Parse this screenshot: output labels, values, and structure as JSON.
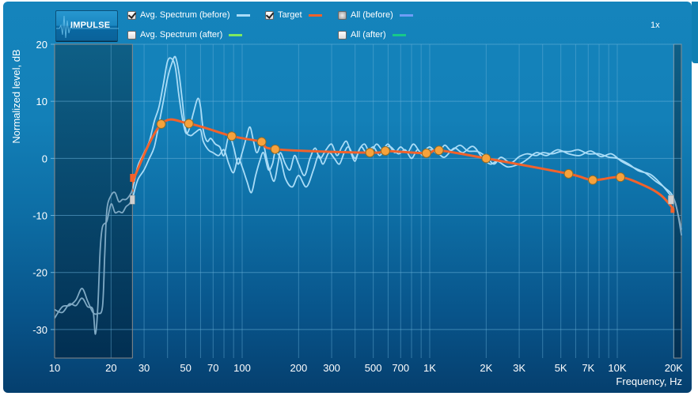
{
  "toolbar": {
    "impulse_button_label": "IMPULSE",
    "zoom_level": "1x"
  },
  "legend": [
    {
      "label": "Avg. Spectrum (before)",
      "checked": true,
      "color": "#a9dcf7"
    },
    {
      "label": "Avg. Spectrum (after)",
      "checked": false,
      "color": "#7ee95f"
    },
    {
      "label": "Target",
      "checked": true,
      "color": "#f2622b"
    },
    {
      "label": "All (before)",
      "checked": "partial",
      "color": "#6e9df6"
    },
    {
      "label": "All (after)",
      "checked": false,
      "color": "#17c98a"
    }
  ],
  "colors": {
    "target": "#f2622b",
    "target_point_fill": "#f7a23b",
    "spectrum": "#a9dcf7",
    "out_of_range_curve": "#7fa9c4",
    "grid": "#5aa6d2",
    "shaded_region": "#0b5b82"
  },
  "chart_data": {
    "type": "line",
    "title": "",
    "xlabel": "Frequency, Hz",
    "ylabel": "Normalized level, dB",
    "xscale": "log",
    "xlim": [
      10,
      22000
    ],
    "ylim": [
      -35,
      20
    ],
    "grid": true,
    "x_ticks": [
      10,
      20,
      30,
      50,
      70,
      100,
      200,
      300,
      500,
      700,
      1000,
      2000,
      3000,
      5000,
      7000,
      10000,
      20000
    ],
    "x_tick_labels": [
      "10",
      "20",
      "30",
      "50",
      "70",
      "100",
      "200",
      "300",
      "500",
      "700",
      "1K",
      "2K",
      "3K",
      "5K",
      "7K",
      "10K",
      "20K"
    ],
    "x_minor_grid": [
      40,
      60,
      80,
      90,
      400,
      600,
      800,
      900,
      4000,
      6000,
      8000,
      9000
    ],
    "y_ticks": [
      20,
      10,
      0,
      -10,
      -20,
      -30
    ],
    "y_tick_labels": [
      "20",
      "10",
      "0",
      "-10",
      "-20",
      "-30"
    ],
    "range_limits": {
      "low_hz": 26,
      "high_hz": 20000
    },
    "series": [
      {
        "name": "Target",
        "kind": "target",
        "points": [
          [
            26.5,
            -3.5
          ],
          [
            37,
            6
          ],
          [
            52,
            6.1
          ],
          [
            88,
            3.9
          ],
          [
            127,
            2.9
          ],
          [
            150,
            1.6
          ],
          [
            480,
            1.0
          ],
          [
            580,
            1.3
          ],
          [
            960,
            0.9
          ],
          [
            1120,
            1.4
          ],
          [
            2000,
            0
          ],
          [
            5500,
            -2.7
          ],
          [
            7400,
            -3.8
          ],
          [
            10400,
            -3.3
          ]
        ],
        "curve_tail": [
          [
            14000,
            -4.8
          ],
          [
            17000,
            -6.4
          ],
          [
            19500,
            -8.5
          ],
          [
            22000,
            -10.8
          ]
        ]
      },
      {
        "name": "Avg. Spectrum (before) L",
        "kind": "spectrum",
        "points": [
          [
            10,
            -28
          ],
          [
            11,
            -26
          ],
          [
            12,
            -25.8
          ],
          [
            13,
            -24.8
          ],
          [
            14,
            -22.8
          ],
          [
            15,
            -25
          ],
          [
            16,
            -27
          ],
          [
            17,
            -27.2
          ],
          [
            18,
            -26
          ],
          [
            18.5,
            -17
          ],
          [
            19,
            -9
          ],
          [
            20,
            -6.5
          ],
          [
            21,
            -6
          ],
          [
            22,
            -7.6
          ],
          [
            23,
            -7.2
          ],
          [
            24,
            -7.2
          ],
          [
            25,
            -6.6
          ],
          [
            26,
            -5.5
          ],
          [
            27,
            -3
          ],
          [
            28,
            -1
          ],
          [
            30,
            1
          ],
          [
            32,
            3
          ],
          [
            34,
            6.5
          ],
          [
            36,
            9
          ],
          [
            38,
            13
          ],
          [
            40,
            17
          ],
          [
            42,
            17.5
          ],
          [
            44,
            16
          ],
          [
            46,
            11
          ],
          [
            48,
            7
          ],
          [
            50,
            4.5
          ],
          [
            52,
            5
          ],
          [
            55,
            8
          ],
          [
            58,
            10.5
          ],
          [
            60,
            9
          ],
          [
            62,
            5
          ],
          [
            65,
            3
          ],
          [
            68,
            3.5
          ],
          [
            72,
            2.5
          ],
          [
            76,
            2
          ],
          [
            80,
            0.5
          ],
          [
            85,
            4
          ],
          [
            90,
            2
          ],
          [
            95,
            -1
          ],
          [
            100,
            1
          ],
          [
            105,
            3.5
          ],
          [
            110,
            5.5
          ],
          [
            115,
            3
          ],
          [
            120,
            1
          ],
          [
            128,
            3
          ],
          [
            135,
            0
          ],
          [
            140,
            -2
          ],
          [
            148,
            -4
          ],
          [
            155,
            -1
          ],
          [
            160,
            1
          ],
          [
            170,
            -1
          ],
          [
            180,
            -2
          ],
          [
            190,
            0.5
          ],
          [
            200,
            -1
          ],
          [
            215,
            -3
          ],
          [
            230,
            0
          ],
          [
            245,
            1.8
          ],
          [
            260,
            0
          ],
          [
            280,
            1.5
          ],
          [
            300,
            2.5
          ],
          [
            320,
            0.5
          ],
          [
            340,
            2
          ],
          [
            360,
            3
          ],
          [
            380,
            1
          ],
          [
            400,
            -0.5
          ],
          [
            420,
            1.5
          ],
          [
            450,
            2.5
          ],
          [
            480,
            1
          ],
          [
            520,
            2.5
          ],
          [
            560,
            1.5
          ],
          [
            600,
            2.5
          ],
          [
            650,
            1
          ],
          [
            700,
            2
          ],
          [
            760,
            1
          ],
          [
            820,
            2.5
          ],
          [
            900,
            1
          ],
          [
            1000,
            2
          ],
          [
            1100,
            0.8
          ],
          [
            1200,
            2.3
          ],
          [
            1300,
            1.4
          ],
          [
            1450,
            2.3
          ],
          [
            1600,
            1.3
          ],
          [
            1800,
            1.2
          ],
          [
            2000,
            0.3
          ],
          [
            2200,
            -1
          ],
          [
            2400,
            0.2
          ],
          [
            2700,
            -0.8
          ],
          [
            3000,
            0.3
          ],
          [
            3300,
            0.8
          ],
          [
            3700,
            0.5
          ],
          [
            4000,
            1
          ],
          [
            4500,
            0.8
          ],
          [
            5000,
            1.2
          ],
          [
            5600,
            1.2
          ],
          [
            6200,
            1.5
          ],
          [
            7000,
            0.8
          ],
          [
            8000,
            0.8
          ],
          [
            9000,
            0.2
          ],
          [
            10000,
            0
          ],
          [
            11500,
            -1
          ],
          [
            13000,
            -2.2
          ],
          [
            15000,
            -2.8
          ],
          [
            17000,
            -4.4
          ],
          [
            19000,
            -6.3
          ],
          [
            20500,
            -8
          ],
          [
            22000,
            -13.5
          ]
        ]
      },
      {
        "name": "Avg. Spectrum (before) R",
        "kind": "spectrum",
        "points": [
          [
            10,
            -26.5
          ],
          [
            11,
            -27
          ],
          [
            12,
            -25.5
          ],
          [
            13,
            -25.8
          ],
          [
            14,
            -24.5
          ],
          [
            15,
            -26
          ],
          [
            16,
            -26.5
          ],
          [
            16.5,
            -30.8
          ],
          [
            17,
            -26
          ],
          [
            17.5,
            -16
          ],
          [
            18,
            -12
          ],
          [
            19,
            -11
          ],
          [
            20,
            -8
          ],
          [
            21,
            -9.5
          ],
          [
            22,
            -9.3
          ],
          [
            23,
            -9.5
          ],
          [
            24,
            -8.5
          ],
          [
            25,
            -8
          ],
          [
            26,
            -7
          ],
          [
            27,
            -5
          ],
          [
            28,
            -3.5
          ],
          [
            30,
            -2
          ],
          [
            32,
            0
          ],
          [
            34,
            2
          ],
          [
            36,
            6
          ],
          [
            38,
            10
          ],
          [
            40,
            14
          ],
          [
            42,
            16.5
          ],
          [
            44,
            17.8
          ],
          [
            46,
            15
          ],
          [
            48,
            10
          ],
          [
            50,
            5
          ],
          [
            53,
            4
          ],
          [
            56,
            4.5
          ],
          [
            60,
            5
          ],
          [
            62,
            3
          ],
          [
            66,
            1.5
          ],
          [
            70,
            1
          ],
          [
            75,
            0.5
          ],
          [
            80,
            1.5
          ],
          [
            85,
            -1
          ],
          [
            90,
            -2.5
          ],
          [
            95,
            0
          ],
          [
            100,
            -1.5
          ],
          [
            106,
            -4
          ],
          [
            112,
            -6
          ],
          [
            118,
            -3
          ],
          [
            124,
            -0.5
          ],
          [
            130,
            1
          ],
          [
            138,
            -2
          ],
          [
            145,
            -1
          ],
          [
            150,
            1
          ],
          [
            160,
            0
          ],
          [
            170,
            -3.5
          ],
          [
            185,
            -5
          ],
          [
            200,
            -3
          ],
          [
            220,
            -5
          ],
          [
            240,
            -2
          ],
          [
            255,
            0.5
          ],
          [
            270,
            -1
          ],
          [
            290,
            1
          ],
          [
            310,
            0
          ],
          [
            330,
            -1
          ],
          [
            350,
            1
          ],
          [
            370,
            2
          ],
          [
            400,
            0
          ],
          [
            430,
            2
          ],
          [
            460,
            1
          ],
          [
            500,
            2
          ],
          [
            540,
            0.5
          ],
          [
            580,
            1.8
          ],
          [
            620,
            2
          ],
          [
            680,
            0.8
          ],
          [
            740,
            1.5
          ],
          [
            800,
            0
          ],
          [
            860,
            1.5
          ],
          [
            920,
            0.5
          ],
          [
            1000,
            1.5
          ],
          [
            1100,
            1
          ],
          [
            1200,
            0.2
          ],
          [
            1350,
            1.8
          ],
          [
            1500,
            1
          ],
          [
            1700,
            2.1
          ],
          [
            1900,
            0.2
          ],
          [
            2100,
            -1
          ],
          [
            2300,
            -0.5
          ],
          [
            2600,
            -1.5
          ],
          [
            3000,
            -1
          ],
          [
            3300,
            -0.2
          ],
          [
            3700,
            1
          ],
          [
            4200,
            0.5
          ],
          [
            4800,
            1.5
          ],
          [
            5500,
            0.8
          ],
          [
            6300,
            0.5
          ],
          [
            7200,
            1.3
          ],
          [
            8200,
            0.3
          ],
          [
            9300,
            0.8
          ],
          [
            10500,
            -0.5
          ],
          [
            12000,
            -1.5
          ],
          [
            14000,
            -2.5
          ],
          [
            16000,
            -4
          ],
          [
            18000,
            -5.2
          ],
          [
            20000,
            -7
          ],
          [
            22000,
            -12.5
          ]
        ]
      }
    ]
  }
}
